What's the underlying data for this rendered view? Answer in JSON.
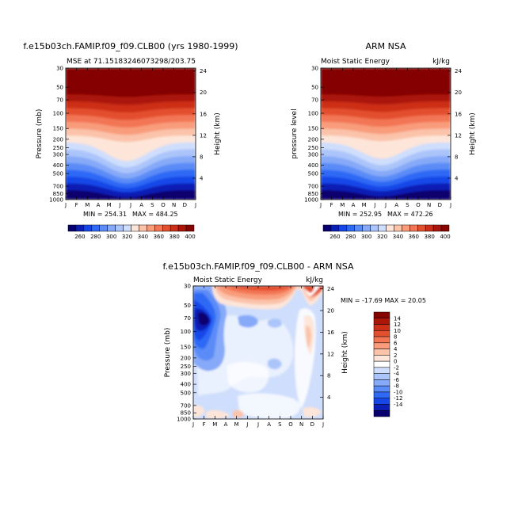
{
  "chart_data": [
    {
      "type": "heatmap",
      "title": "f.e15b03ch.FAMIP.f09_f09.CLB00 (yrs 1980-1999)",
      "left_label": "MSE at 71.15183246073298/203.75",
      "right_label": "",
      "ylabel": "Pressure (mb)",
      "ylabel_right": "Height (km)",
      "months": [
        "J",
        "F",
        "M",
        "A",
        "M",
        "J",
        "J",
        "A",
        "S",
        "O",
        "N",
        "D",
        "J"
      ],
      "pressure_ticks": [
        "30",
        "50",
        "70",
        "100",
        "150",
        "200",
        "250",
        "300",
        "400",
        "500",
        "700",
        "850",
        "1000"
      ],
      "height_ticks": [
        "24",
        "20",
        "16",
        "12",
        "8",
        "4"
      ],
      "min_label": "MIN = 254.31",
      "max_label": "MAX = 484.25",
      "min": 254.31,
      "max": 484.25
    },
    {
      "type": "heatmap",
      "title": "ARM NSA",
      "left_label": "Moist Static Energy",
      "right_label": "kJ/kg",
      "ylabel": "pressure level",
      "ylabel_right": "Height (km)",
      "months": [
        "J",
        "F",
        "M",
        "A",
        "M",
        "J",
        "J",
        "A",
        "S",
        "O",
        "N",
        "D",
        "J"
      ],
      "pressure_ticks": [
        "30",
        "50",
        "70",
        "100",
        "150",
        "200",
        "250",
        "300",
        "400",
        "500",
        "700",
        "850",
        "1000"
      ],
      "height_ticks": [
        "24",
        "20",
        "16",
        "12",
        "8",
        "4"
      ],
      "min_label": "MIN = 252.95",
      "max_label": "MAX = 472.26",
      "min": 252.95,
      "max": 472.26
    },
    {
      "type": "heatmap",
      "title": "f.e15b03ch.FAMIP.f09_f09.CLB00 - ARM NSA",
      "left_label": "Moist Static Energy",
      "right_label": "kJ/kg",
      "ylabel": "Pressure (mb)",
      "ylabel_right": "Height (km)",
      "months": [
        "J",
        "F",
        "M",
        "A",
        "M",
        "J",
        "J",
        "A",
        "S",
        "O",
        "N",
        "D",
        "J"
      ],
      "pressure_ticks": [
        "30",
        "50",
        "70",
        "100",
        "150",
        "200",
        "250",
        "300",
        "400",
        "500",
        "700",
        "850",
        "1000"
      ],
      "height_ticks": [
        "24",
        "20",
        "16",
        "12",
        "8",
        "4"
      ],
      "minmax_label": "MIN = -17.69  MAX =  20.05",
      "min": -17.69,
      "max": 20.05
    }
  ],
  "colorbar_top": {
    "labels": [
      "260",
      "280",
      "300",
      "320",
      "340",
      "360",
      "380",
      "400"
    ],
    "colors": [
      "#08006e",
      "#0b1fb4",
      "#1646e8",
      "#2f69f5",
      "#5a8bf7",
      "#86a9f8",
      "#abc5fa",
      "#cfdefc",
      "#fde5d9",
      "#fbc3aa",
      "#f89c7c",
      "#f27654",
      "#e3502f",
      "#cc2f17",
      "#aa1607",
      "#850400"
    ]
  },
  "colorbar_diff": {
    "labels": [
      "14",
      "12",
      "10",
      "8",
      "6",
      "4",
      "2",
      "0",
      "-2",
      "-4",
      "-6",
      "-8",
      "-10",
      "-12",
      "-14"
    ],
    "colors": [
      "#850400",
      "#aa1607",
      "#cc2f17",
      "#e3502f",
      "#f27654",
      "#f89c7c",
      "#fbc3aa",
      "#fde5d9",
      "#ffffff",
      "#cfdefc",
      "#abc5fa",
      "#86a9f8",
      "#5a8bf7",
      "#2f69f5",
      "#1646e8",
      "#0b1fb4",
      "#08006e"
    ]
  }
}
